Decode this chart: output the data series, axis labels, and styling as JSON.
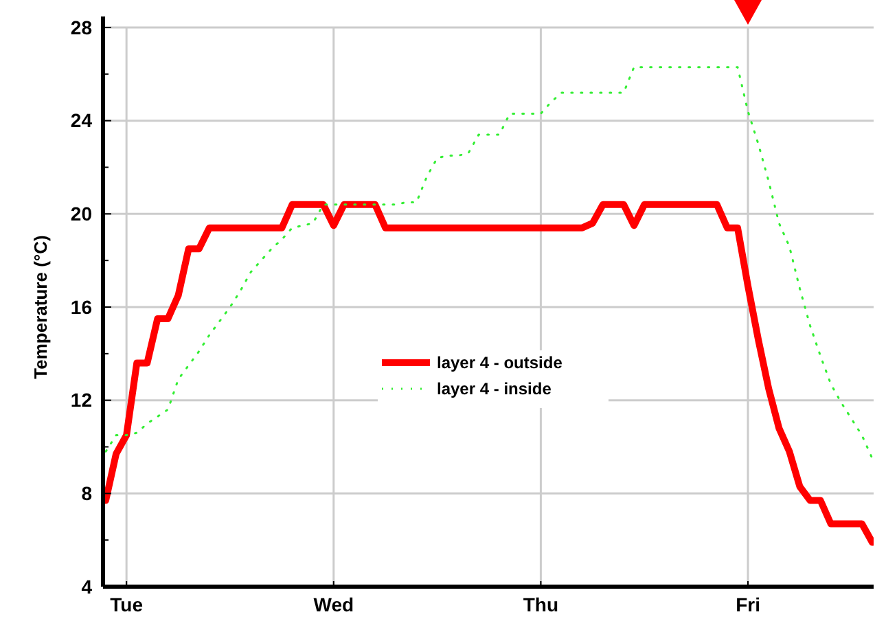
{
  "chart_data": {
    "type": "line",
    "ylabel": "Temperature (°C)",
    "categories": [
      null,
      null,
      "Tue",
      null,
      null,
      null,
      null,
      null,
      null,
      null,
      null,
      null,
      null,
      null,
      null,
      null,
      null,
      null,
      null,
      null,
      null,
      null,
      "Wed",
      null,
      null,
      null,
      null,
      null,
      null,
      null,
      null,
      null,
      null,
      null,
      null,
      null,
      null,
      null,
      null,
      null,
      null,
      null,
      "Thu",
      null,
      null,
      null,
      null,
      null,
      null,
      null,
      null,
      null,
      null,
      null,
      null,
      null,
      null,
      null,
      null,
      null,
      null,
      null,
      "Fri",
      null,
      null,
      null,
      null,
      null,
      null,
      null,
      null,
      null,
      null,
      null,
      null
    ],
    "ylim": [
      4,
      28
    ],
    "yticks": [
      4,
      {
        "value": 6,
        "label": null
      },
      8,
      {
        "value": 10,
        "label": null
      },
      12,
      {
        "value": 14,
        "label": null
      },
      16,
      {
        "value": 18,
        "label": null
      },
      20,
      {
        "value": 22,
        "label": null
      },
      24,
      {
        "value": 26,
        "label": null
      },
      28
    ],
    "grid": true,
    "legend": "center",
    "series": [
      {
        "name": "layer 4 - outside",
        "color": "#ff0000",
        "line_style": "solid",
        "values": [
          7.7,
          9.7,
          10.5,
          13.6,
          13.6,
          15.5,
          15.5,
          16.5,
          18.5,
          18.5,
          19.4,
          19.4,
          19.4,
          19.4,
          19.4,
          19.4,
          19.4,
          19.4,
          20.4,
          20.4,
          20.4,
          20.4,
          19.5,
          20.4,
          20.4,
          20.4,
          20.4,
          19.4,
          19.4,
          19.4,
          19.4,
          19.4,
          19.4,
          19.4,
          19.4,
          19.4,
          19.4,
          19.4,
          19.4,
          19.4,
          19.4,
          19.4,
          19.4,
          19.4,
          19.4,
          19.4,
          19.4,
          19.6,
          20.4,
          20.4,
          20.4,
          19.5,
          20.4,
          20.4,
          20.4,
          20.4,
          20.4,
          20.4,
          20.4,
          20.4,
          19.4,
          19.4,
          16.9,
          14.6,
          12.5,
          10.8,
          9.8,
          8.3,
          7.7,
          7.7,
          6.7,
          6.7,
          6.7,
          6.7,
          5.9
        ]
      },
      {
        "name": "layer 4 - inside",
        "color": "#33ee33",
        "line_style": "dotted",
        "values": [
          9.8,
          10.5,
          10.5,
          10.6,
          11.0,
          11.3,
          11.6,
          12.9,
          13.5,
          14.1,
          14.8,
          15.4,
          16.0,
          16.7,
          17.5,
          18.0,
          18.5,
          18.9,
          19.4,
          19.5,
          19.6,
          20.4,
          20.4,
          20.4,
          20.4,
          20.4,
          20.4,
          20.4,
          20.4,
          20.5,
          20.5,
          21.6,
          22.4,
          22.5,
          22.5,
          22.6,
          23.4,
          23.4,
          23.4,
          24.3,
          24.3,
          24.3,
          24.3,
          24.8,
          25.2,
          25.2,
          25.2,
          25.2,
          25.2,
          25.2,
          25.2,
          26.3,
          26.3,
          26.3,
          26.3,
          26.3,
          26.3,
          26.3,
          26.3,
          26.3,
          26.3,
          26.3,
          24.4,
          23.0,
          21.4,
          19.6,
          18.6,
          16.8,
          15.2,
          13.9,
          12.7,
          11.9,
          11.2,
          10.5,
          9.5
        ]
      }
    ]
  }
}
